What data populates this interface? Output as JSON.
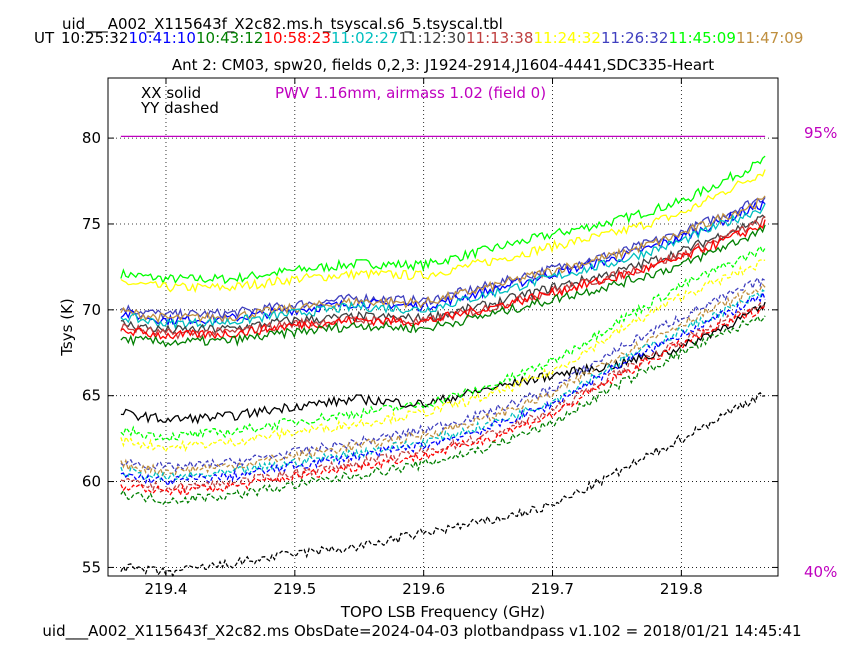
{
  "header": {
    "filename": "uid___A002_X115643f_X2c82.ms.h_tsyscal.s6_5.tsyscal.tbl",
    "ut_label": "UT"
  },
  "footer": "uid___A002_X115643f_X2c82.ms  ObsDate=2024-04-03   plotbandpass v1.102 = 2018/01/21 14:45:41",
  "colors": {
    "black": "#000000",
    "blue": "#0000ff",
    "dkgreen": "#007f00",
    "red": "#ff0000",
    "cyan": "#00bfbf",
    "gray": "#3f3f3f",
    "brick": "#bf3f3f",
    "yellow": "#ffff00",
    "slate": "#3f3fbf",
    "lime": "#00ff00",
    "tan": "#bf8f3f",
    "magenta": "#bf00bf"
  },
  "chart_data": {
    "type": "line",
    "title": "Ant 2: CM03,  spw20,  fields 0,2,3: J1924-2914,J1604-4441,SDC335-Heart",
    "xlabel": "TOPO LSB Frequency (GHz)",
    "ylabel": "Tsys (K)",
    "xlim": [
      219.355,
      219.875
    ],
    "ylim": [
      54.5,
      83.5
    ],
    "xticks": [
      "219.4",
      "219.5",
      "219.6",
      "219.7",
      "219.8"
    ],
    "yticks": [
      "55",
      "60",
      "65",
      "70",
      "75",
      "80"
    ],
    "grid": true,
    "legend_xx": "XX solid",
    "legend_yy": "YY dashed",
    "pwv_note": "PWV 1.16mm, airmass 1.02 (field 0)",
    "transmission": {
      "value": 80.1,
      "top_label": "95%",
      "bottom_label": "40%"
    },
    "times": [
      {
        "label": "10:25:32",
        "color": "#000000"
      },
      {
        "label": "10:41:10",
        "color": "#0000ff"
      },
      {
        "label": "10:43:12",
        "color": "#007f00"
      },
      {
        "label": "10:58:23",
        "color": "#ff0000"
      },
      {
        "label": "11:02:27",
        "color": "#00bfbf"
      },
      {
        "label": "11:12:30",
        "color": "#3f3f3f"
      },
      {
        "label": "11:13:38",
        "color": "#bf3f3f"
      },
      {
        "label": "11:24:32",
        "color": "#ffff00"
      },
      {
        "label": "11:26:32",
        "color": "#3f3fbf"
      },
      {
        "label": "11:45:09",
        "color": "#00ff00"
      },
      {
        "label": "11:47:09",
        "color": "#bf8f3f"
      }
    ],
    "x": [
      219.365,
      219.4,
      219.45,
      219.5,
      219.55,
      219.6,
      219.65,
      219.7,
      219.75,
      219.8,
      219.865
    ],
    "series": [
      {
        "pol": "XX",
        "color": "#00ff00",
        "values": [
          72.1,
          71.8,
          71.8,
          72.3,
          72.7,
          72.6,
          73.5,
          74.4,
          75.2,
          76.3,
          78.7
        ]
      },
      {
        "pol": "XX",
        "color": "#ffff00",
        "values": [
          71.6,
          71.3,
          71.3,
          71.8,
          72.1,
          72.0,
          72.8,
          73.7,
          74.5,
          75.6,
          78.1
        ]
      },
      {
        "pol": "XX",
        "color": "#3f3fbf",
        "values": [
          70.1,
          69.7,
          69.8,
          70.3,
          70.7,
          70.5,
          71.4,
          72.4,
          73.3,
          74.5,
          76.6
        ]
      },
      {
        "pol": "XX",
        "color": "#0000ff",
        "values": [
          69.8,
          69.4,
          69.5,
          70.0,
          70.4,
          70.2,
          71.1,
          72.1,
          73.0,
          74.2,
          76.2
        ]
      },
      {
        "pol": "XX",
        "color": "#bf8f3f",
        "values": [
          69.9,
          69.5,
          69.6,
          70.1,
          70.5,
          70.4,
          71.3,
          72.3,
          73.2,
          74.4,
          76.4
        ]
      },
      {
        "pol": "XX",
        "color": "#00bfbf",
        "values": [
          69.6,
          69.2,
          69.3,
          69.8,
          70.2,
          70.0,
          70.9,
          71.9,
          72.8,
          74.0,
          76.0
        ]
      },
      {
        "pol": "XX",
        "color": "#3f3f3f",
        "values": [
          69.2,
          68.8,
          68.9,
          69.4,
          69.6,
          69.5,
          70.3,
          71.3,
          72.2,
          73.4,
          75.4
        ]
      },
      {
        "pol": "XX",
        "color": "#bf3f3f",
        "values": [
          69.0,
          68.6,
          68.7,
          69.2,
          69.4,
          69.3,
          70.1,
          71.1,
          72.0,
          73.2,
          75.2
        ]
      },
      {
        "pol": "XX",
        "color": "#ff0000",
        "values": [
          68.8,
          68.5,
          68.6,
          69.1,
          69.4,
          69.3,
          70.1,
          71.0,
          71.9,
          73.0,
          75.0
        ]
      },
      {
        "pol": "XX",
        "color": "#007f00",
        "values": [
          68.3,
          68.1,
          68.2,
          68.7,
          69.1,
          68.9,
          69.7,
          70.6,
          71.5,
          72.6,
          74.7
        ]
      },
      {
        "pol": "XX",
        "color": "#000000",
        "values": [
          64.0,
          63.6,
          63.8,
          64.4,
          64.8,
          64.5,
          65.4,
          66.2,
          66.8,
          67.8,
          70.2
        ]
      },
      {
        "pol": "YY",
        "color": "#00ff00",
        "values": [
          63.0,
          62.6,
          62.9,
          63.5,
          64.0,
          64.5,
          65.5,
          67.0,
          69.3,
          71.4,
          73.6
        ]
      },
      {
        "pol": "YY",
        "color": "#ffff00",
        "values": [
          62.4,
          62.0,
          62.3,
          62.9,
          63.4,
          64.0,
          65.0,
          66.4,
          68.7,
          70.8,
          72.8
        ]
      },
      {
        "pol": "YY",
        "color": "#3f3fbf",
        "values": [
          61.2,
          60.8,
          61.1,
          61.7,
          62.3,
          63.0,
          64.0,
          65.4,
          67.7,
          69.6,
          71.8
        ]
      },
      {
        "pol": "YY",
        "color": "#bf8f3f",
        "values": [
          61.0,
          60.6,
          60.9,
          61.5,
          62.1,
          62.7,
          63.7,
          65.1,
          67.3,
          69.2,
          71.4
        ]
      },
      {
        "pol": "YY",
        "color": "#00bfbf",
        "values": [
          60.6,
          60.2,
          60.5,
          61.1,
          61.7,
          62.3,
          63.3,
          64.7,
          66.9,
          68.8,
          71.0
        ]
      },
      {
        "pol": "YY",
        "color": "#0000ff",
        "values": [
          60.4,
          60.0,
          60.3,
          60.9,
          61.5,
          62.1,
          63.1,
          64.5,
          66.7,
          68.6,
          70.8
        ]
      },
      {
        "pol": "YY",
        "color": "#bf3f3f",
        "values": [
          60.0,
          59.6,
          59.9,
          60.5,
          61.1,
          61.7,
          62.7,
          64.1,
          66.3,
          68.2,
          70.4
        ]
      },
      {
        "pol": "YY",
        "color": "#ff0000",
        "values": [
          59.8,
          59.4,
          59.7,
          60.3,
          60.9,
          61.5,
          62.5,
          63.9,
          66.1,
          68.0,
          70.2
        ]
      },
      {
        "pol": "YY",
        "color": "#007f00",
        "values": [
          59.3,
          58.9,
          59.2,
          59.8,
          60.4,
          61.0,
          62.0,
          63.4,
          65.6,
          67.5,
          69.7
        ]
      },
      {
        "pol": "YY",
        "color": "#000000",
        "values": [
          55.0,
          54.7,
          55.2,
          55.8,
          56.2,
          57.0,
          57.7,
          58.6,
          60.5,
          62.5,
          65.2
        ]
      }
    ]
  }
}
